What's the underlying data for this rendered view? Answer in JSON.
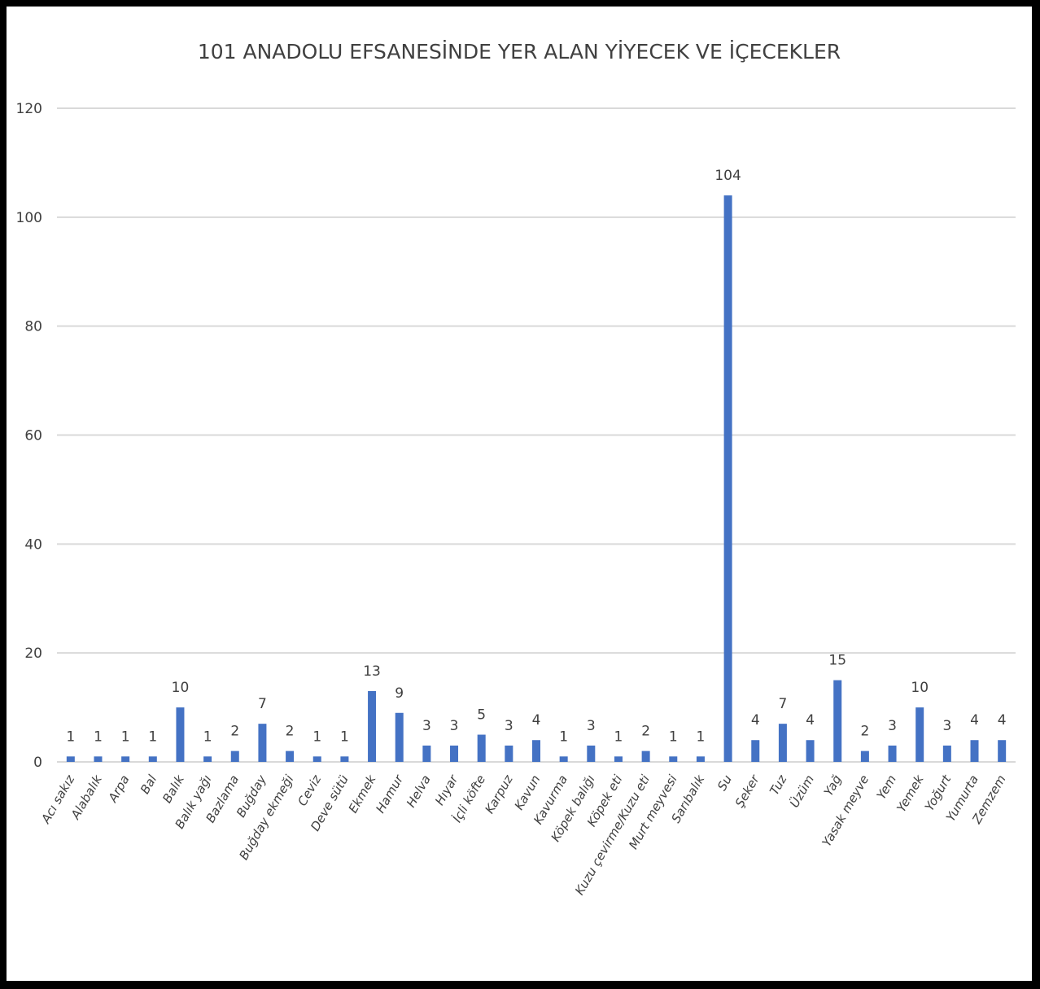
{
  "chart_data": {
    "type": "bar",
    "title": "101 ANADOLU EFSANESİNDE YER ALAN YİYECEK VE İÇECEKLER",
    "xlabel": "",
    "ylabel": "",
    "ylim": [
      0,
      120
    ],
    "yticks": [
      0,
      20,
      40,
      60,
      80,
      100,
      120
    ],
    "grid": true,
    "legend": "none",
    "bar_color": "#4472c4",
    "categories": [
      "Acı sakız",
      "Alabalık",
      "Arpa",
      "Bal",
      "Balık",
      "Balık yağı",
      "Bazlama",
      "Buğday",
      "Buğday ekmeği",
      "Ceviz",
      "Deve sütü",
      "Ekmek",
      "Hamur",
      "Helva",
      "Hıyar",
      "İçli köfte",
      "Karpuz",
      "Kavun",
      "Kavurma",
      "Köpek balığı",
      "Köpek eti",
      "Kuzu çevirme/Kuzu eti",
      "Murt meyvesi",
      "Sarıbalık",
      "Su",
      "Şeker",
      "Tuz",
      "Üzüm",
      "Yağ",
      "Yasak meyve",
      "Yem",
      "Yemek",
      "Yoğurt",
      "Yumurta",
      "Zemzem"
    ],
    "values": [
      1,
      1,
      1,
      1,
      10,
      1,
      2,
      7,
      2,
      1,
      1,
      13,
      9,
      3,
      3,
      5,
      3,
      4,
      1,
      3,
      1,
      2,
      1,
      1,
      104,
      4,
      7,
      4,
      15,
      2,
      3,
      10,
      3,
      4,
      4
    ]
  }
}
